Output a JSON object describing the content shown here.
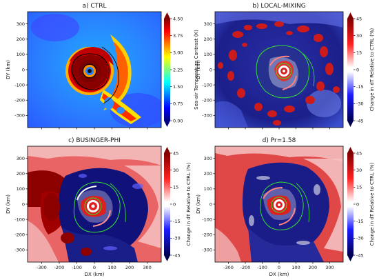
{
  "chart_data": [
    {
      "type": "heatmap",
      "title": "a) CTRL",
      "xlabel": "",
      "ylabel": "DY (km)",
      "xlim": [
        -380,
        380
      ],
      "ylim": [
        -380,
        380
      ],
      "yticks": [
        300,
        200,
        100,
        0,
        -100,
        -200,
        -300
      ],
      "xticks": [],
      "colorbar": {
        "label": "Sea-air Temperature Contrast (K)",
        "ticks": [
          "4.50",
          "3.75",
          "3.00",
          "2.25",
          "1.50",
          "0.75",
          "0.00"
        ],
        "range": [
          0,
          4.5
        ],
        "colormap": "jet"
      }
    },
    {
      "type": "heatmap",
      "title": "b) LOCAL-MIXING",
      "xlabel": "",
      "ylabel": "DY (km)",
      "xlim": [
        -380,
        380
      ],
      "ylim": [
        -380,
        380
      ],
      "yticks": [
        300,
        200,
        100,
        0,
        -100,
        -200,
        -300
      ],
      "xticks": [],
      "colorbar": {
        "label": "Change in dT Relative to CTRL (%)",
        "ticks": [
          "45",
          "30",
          "15",
          "0",
          "-15",
          "-30",
          "-45"
        ],
        "range": [
          -45,
          45
        ],
        "colormap": "seismic"
      }
    },
    {
      "type": "heatmap",
      "title": "c) BUSINGER-PHI",
      "xlabel": "DX (km)",
      "ylabel": "DY (km)",
      "xlim": [
        -380,
        380
      ],
      "ylim": [
        -380,
        380
      ],
      "yticks": [
        300,
        200,
        100,
        0,
        -100,
        -200,
        -300
      ],
      "xticks": [
        -300,
        -200,
        -100,
        0,
        100,
        200,
        300
      ],
      "colorbar": {
        "label": "Change in dT Relative to CTRL (%)",
        "ticks": [
          "45",
          "30",
          "15",
          "0",
          "-15",
          "-30",
          "-45"
        ],
        "range": [
          -45,
          45
        ],
        "colormap": "seismic"
      }
    },
    {
      "type": "heatmap",
      "title": "d) Pr=1.58",
      "xlabel": "DX (km)",
      "ylabel": "DY (km)",
      "xlim": [
        -380,
        380
      ],
      "ylim": [
        -380,
        380
      ],
      "yticks": [
        300,
        200,
        100,
        0,
        -100,
        -200,
        -300
      ],
      "xticks": [
        -300,
        -200,
        -100,
        0,
        100,
        200,
        300
      ],
      "colorbar": {
        "label": "Change in dT Relative to CTRL (%)",
        "ticks": [
          "45",
          "30",
          "15",
          "0",
          "-15",
          "-30",
          "-45"
        ],
        "range": [
          -45,
          45
        ],
        "colormap": "seismic"
      }
    }
  ]
}
